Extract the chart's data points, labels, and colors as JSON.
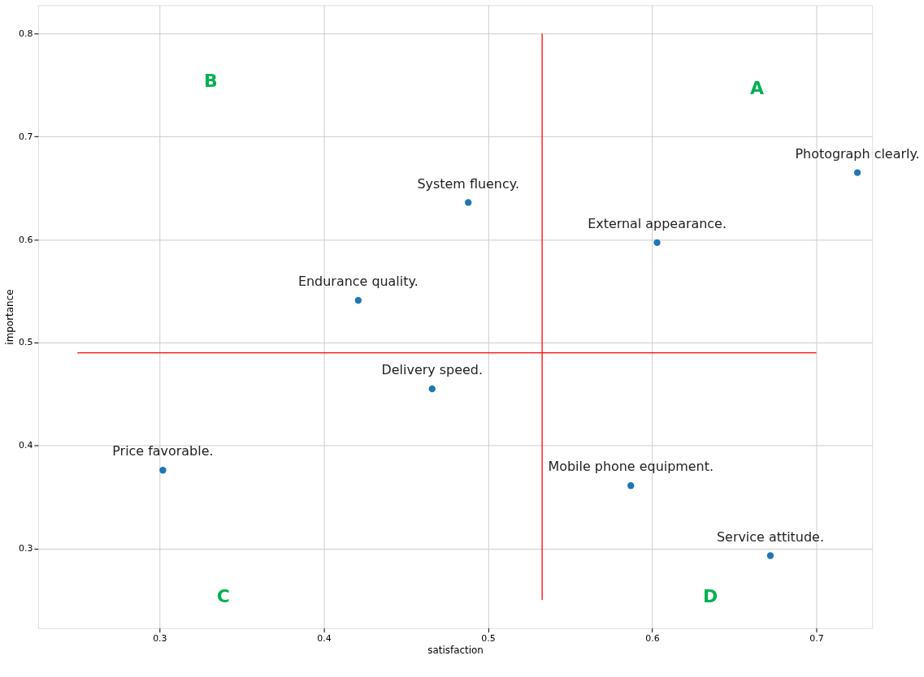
{
  "chart_data": {
    "type": "scatter",
    "xlabel": "satisfaction",
    "ylabel": "importance",
    "xlim": [
      0.226,
      0.734
    ],
    "ylim": [
      0.2227,
      0.8276
    ],
    "xticks": [
      0.3,
      0.4,
      0.5,
      0.6,
      0.7
    ],
    "yticks": [
      0.3,
      0.4,
      0.5,
      0.6,
      0.7,
      0.8
    ],
    "grid": true,
    "series": [
      {
        "marker": "circle",
        "color": "#1f77b4",
        "x": [
          0.725,
          0.488,
          0.603,
          0.421,
          0.466,
          0.302,
          0.587,
          0.672
        ],
        "values": [
          0.665,
          0.636,
          0.597,
          0.541,
          0.455,
          0.376,
          0.361,
          0.293
        ]
      },
      {
        "type": "line",
        "color": "#ff0000",
        "x": [
          0.533,
          0.533
        ],
        "values": [
          0.25,
          0.8
        ]
      },
      {
        "type": "line",
        "color": "#ff0000",
        "x": [
          0.25,
          0.7
        ],
        "values": [
          0.49,
          0.49
        ]
      }
    ],
    "annotations": [
      {
        "text": "Photograph clearly.",
        "x": 0.725,
        "y": 0.665
      },
      {
        "text": "System fluency.",
        "x": 0.488,
        "y": 0.636
      },
      {
        "text": "External appearance.",
        "x": 0.603,
        "y": 0.597
      },
      {
        "text": "Endurance quality.",
        "x": 0.421,
        "y": 0.541
      },
      {
        "text": "Delivery speed.",
        "x": 0.466,
        "y": 0.455
      },
      {
        "text": "Price favorable.",
        "x": 0.302,
        "y": 0.376
      },
      {
        "text": "Mobile phone equipment.",
        "x": 0.587,
        "y": 0.361
      },
      {
        "text": "Service attitude.",
        "x": 0.672,
        "y": 0.293
      },
      "A",
      "B",
      "C",
      "D"
    ]
  }
}
